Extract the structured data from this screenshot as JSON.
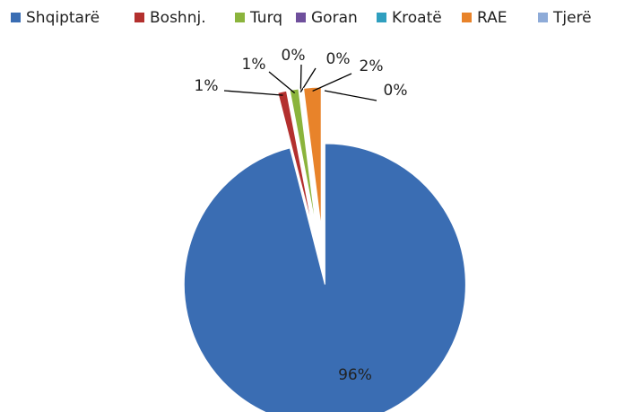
{
  "chart_data": {
    "type": "pie",
    "categories": [
      "Shqiptarë",
      "Boshnj.",
      "Turq",
      "Goran",
      "Kroatë",
      "RAE",
      "Tjerë"
    ],
    "values": [
      96,
      1,
      1,
      0,
      0,
      2,
      0
    ],
    "value_labels": [
      "96%",
      "1%",
      "1%",
      "0%",
      "0%",
      "2%",
      "0%"
    ],
    "colors": [
      "#3a6db3",
      "#b3302e",
      "#8bb43c",
      "#6f4f9c",
      "#2f9fbf",
      "#e8832a",
      "#8eabd8"
    ],
    "legend": "top"
  }
}
